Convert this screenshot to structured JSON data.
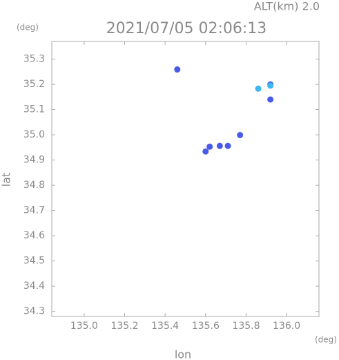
{
  "chart_data": {
    "type": "scatter",
    "annotation": "ALT(km) 2.0",
    "title": "2021/07/05 02:06:13",
    "y_unit": "(deg)",
    "x_unit": "(deg)",
    "xlabel": "lon",
    "ylabel": "lat",
    "xlim": [
      134.84,
      136.16
    ],
    "ylim": [
      34.28,
      35.37
    ],
    "xticks": [
      {
        "value": 135,
        "label": "135.0"
      },
      135.2,
      135.4,
      135.6,
      135.8,
      {
        "value": 136,
        "label": "136.0"
      }
    ],
    "yticks": [
      34.3,
      34.4,
      34.5,
      34.6,
      34.7,
      34.8,
      34.9,
      {
        "value": 35,
        "label": "35.0"
      },
      35.1,
      35.2,
      35.3
    ],
    "series": [
      {
        "color": "#4a5ae8",
        "x": [
          135.46,
          135.92,
          135.92,
          135.77,
          135.67,
          135.71,
          135.62,
          135.6
        ],
        "values": [
          35.259,
          35.2,
          35.14,
          34.999,
          34.956,
          34.956,
          34.953,
          34.934
        ]
      },
      {
        "color": "#3fb6f0",
        "x": [
          135.86,
          135.92
        ],
        "values": [
          35.183,
          35.195
        ]
      }
    ]
  }
}
